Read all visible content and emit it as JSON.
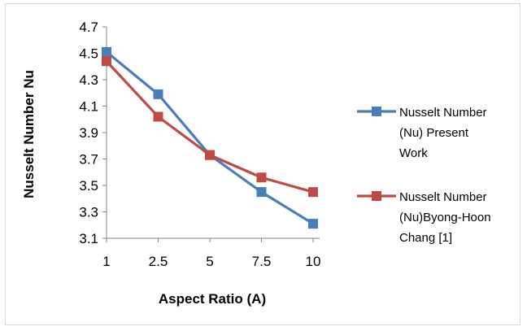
{
  "chart_data": {
    "type": "line",
    "title": "",
    "xlabel": "Aspect Ratio (A)",
    "ylabel": "Nusselt Number Nu",
    "categories": [
      "1",
      "2.5",
      "5",
      "7.5",
      "10"
    ],
    "ylim": [
      3.1,
      4.7
    ],
    "yticks": [
      "3.1",
      "3.3",
      "3.5",
      "3.7",
      "3.9",
      "4.1",
      "4.3",
      "4.5",
      "4.7"
    ],
    "grid": false,
    "legend_position": "right",
    "series": [
      {
        "name": "Nusselt Number (Nu) Present Work",
        "legend_lines": [
          "Nusselt Number",
          "(Nu) Present",
          "Work"
        ],
        "color": "#4a7ebb",
        "values": [
          4.51,
          4.19,
          3.73,
          3.45,
          3.21
        ]
      },
      {
        "name": "Nusselt Number (Nu)Byong-Hoon Chang [1]",
        "legend_lines": [
          "Nusselt Number",
          "(Nu)Byong-Hoon",
          "Chang [1]"
        ],
        "color": "#be4b48",
        "values": [
          4.44,
          4.02,
          3.73,
          3.56,
          3.45
        ]
      }
    ]
  }
}
